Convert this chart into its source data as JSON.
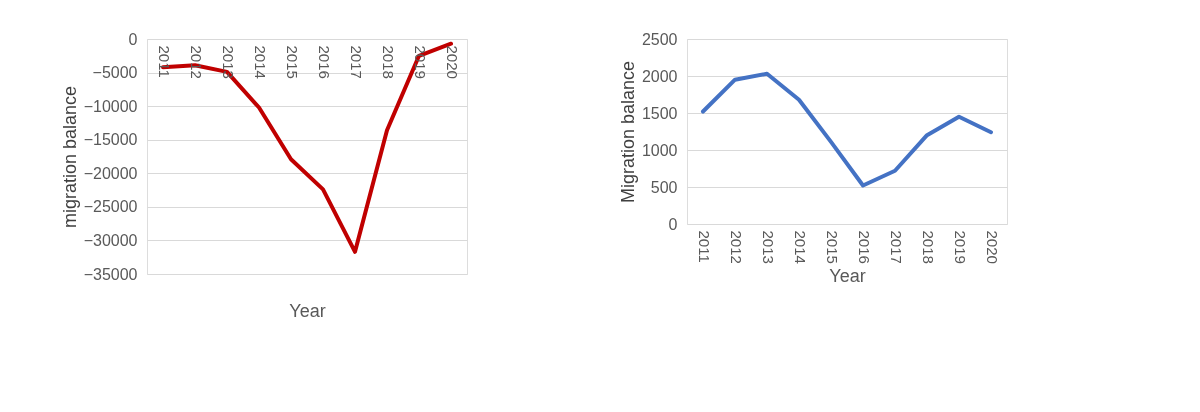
{
  "chart_data": [
    {
      "type": "line",
      "categories": [
        "2011",
        "2012",
        "2013",
        "2014",
        "2015",
        "2016",
        "2017",
        "2018",
        "2019",
        "2020"
      ],
      "xlabel": "Year",
      "ylabel": "migration balance",
      "series": [
        {
          "color": "#c00000",
          "values": [
            -4200,
            -3900,
            -4900,
            -10200,
            -17900,
            -22400,
            -31700,
            -13600,
            -2500,
            -700
          ]
        }
      ],
      "ylim": [
        -35000,
        0
      ],
      "yticks": [
        -35000,
        -30000,
        -25000,
        -20000,
        -15000,
        -10000,
        -5000,
        0
      ],
      "grid": "y",
      "marker": "none",
      "line_style": "solid"
    },
    {
      "type": "line",
      "categories": [
        "2011",
        "2012",
        "2013",
        "2014",
        "2015",
        "2016",
        "2017",
        "2018",
        "2019",
        "2020"
      ],
      "xlabel": "Year",
      "ylabel": "Migration balance",
      "series": [
        {
          "color": "#4472c4",
          "values": [
            1520,
            1950,
            2030,
            1680,
            1110,
            520,
            720,
            1200,
            1450,
            1240
          ]
        }
      ],
      "ylim": [
        0,
        2500
      ],
      "yticks": [
        0,
        500,
        1000,
        1500,
        2000,
        2500
      ],
      "grid": "y",
      "marker": "none",
      "line_style": "solid"
    }
  ]
}
